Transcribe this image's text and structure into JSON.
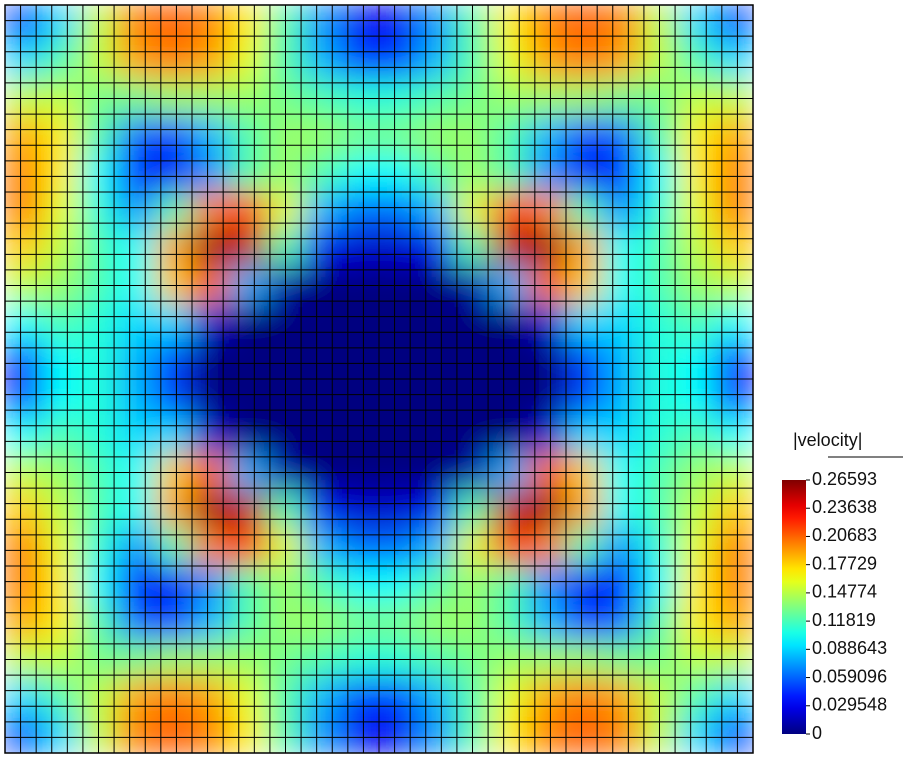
{
  "chart_data": {
    "type": "heatmap",
    "colorbar_title": "|velocity|",
    "colormap": "jet",
    "mesh": true,
    "clim": [
      0,
      0.26593
    ],
    "cticks": [
      0,
      0.029548,
      0.059096,
      0.088643,
      0.11819,
      0.14774,
      0.17729,
      0.20683,
      0.23638,
      0.26593
    ],
    "z": [
      [
        0.05,
        0.09,
        0.15,
        0.2,
        0.21,
        0.2,
        0.17,
        0.12,
        0.07,
        0.03,
        0.03,
        0.07,
        0.12,
        0.17,
        0.2,
        0.21,
        0.2,
        0.15,
        0.09,
        0.05
      ],
      [
        0.09,
        0.12,
        0.15,
        0.19,
        0.2,
        0.19,
        0.16,
        0.12,
        0.08,
        0.05,
        0.05,
        0.08,
        0.12,
        0.16,
        0.19,
        0.2,
        0.19,
        0.15,
        0.12,
        0.09
      ],
      [
        0.15,
        0.15,
        0.13,
        0.13,
        0.14,
        0.14,
        0.14,
        0.13,
        0.12,
        0.11,
        0.11,
        0.12,
        0.13,
        0.14,
        0.14,
        0.14,
        0.13,
        0.13,
        0.15,
        0.15
      ],
      [
        0.19,
        0.17,
        0.12,
        0.06,
        0.05,
        0.08,
        0.12,
        0.14,
        0.14,
        0.13,
        0.13,
        0.14,
        0.14,
        0.12,
        0.08,
        0.05,
        0.06,
        0.12,
        0.17,
        0.19
      ],
      [
        0.2,
        0.17,
        0.1,
        0.04,
        0.03,
        0.07,
        0.12,
        0.14,
        0.12,
        0.1,
        0.1,
        0.12,
        0.14,
        0.12,
        0.07,
        0.03,
        0.04,
        0.1,
        0.17,
        0.2
      ],
      [
        0.2,
        0.16,
        0.11,
        0.07,
        0.12,
        0.2,
        0.22,
        0.16,
        0.08,
        0.06,
        0.06,
        0.08,
        0.16,
        0.22,
        0.2,
        0.12,
        0.07,
        0.11,
        0.16,
        0.2
      ],
      [
        0.18,
        0.15,
        0.12,
        0.1,
        0.19,
        0.26,
        0.25,
        0.12,
        0.03,
        0.02,
        0.02,
        0.03,
        0.12,
        0.25,
        0.26,
        0.19,
        0.1,
        0.12,
        0.15,
        0.18
      ],
      [
        0.15,
        0.14,
        0.12,
        0.1,
        0.18,
        0.21,
        0.08,
        0.01,
        0,
        0,
        0,
        0,
        0.01,
        0.08,
        0.21,
        0.18,
        0.1,
        0.12,
        0.14,
        0.15
      ],
      [
        0.1,
        0.12,
        0.11,
        0.09,
        0.09,
        0.02,
        0,
        0,
        0,
        0,
        0,
        0,
        0,
        0,
        0.02,
        0.09,
        0.09,
        0.11,
        0.12,
        0.1
      ],
      [
        0.04,
        0.1,
        0.11,
        0.08,
        0.05,
        0,
        0,
        0,
        0,
        0,
        0,
        0,
        0,
        0,
        0,
        0.05,
        0.08,
        0.11,
        0.1,
        0.04
      ],
      [
        0.04,
        0.1,
        0.11,
        0.08,
        0.05,
        0,
        0,
        0,
        0,
        0,
        0,
        0,
        0,
        0,
        0,
        0.05,
        0.08,
        0.11,
        0.1,
        0.04
      ],
      [
        0.1,
        0.12,
        0.11,
        0.09,
        0.09,
        0.02,
        0,
        0,
        0,
        0,
        0,
        0,
        0,
        0,
        0.02,
        0.09,
        0.09,
        0.11,
        0.12,
        0.1
      ],
      [
        0.15,
        0.14,
        0.12,
        0.1,
        0.18,
        0.21,
        0.08,
        0.01,
        0,
        0,
        0,
        0,
        0.01,
        0.08,
        0.21,
        0.18,
        0.1,
        0.12,
        0.14,
        0.15
      ],
      [
        0.18,
        0.15,
        0.12,
        0.1,
        0.19,
        0.26,
        0.25,
        0.12,
        0.03,
        0.02,
        0.02,
        0.03,
        0.12,
        0.25,
        0.26,
        0.19,
        0.1,
        0.12,
        0.15,
        0.18
      ],
      [
        0.2,
        0.16,
        0.11,
        0.07,
        0.12,
        0.2,
        0.22,
        0.16,
        0.08,
        0.06,
        0.06,
        0.08,
        0.16,
        0.22,
        0.2,
        0.12,
        0.07,
        0.11,
        0.16,
        0.2
      ],
      [
        0.2,
        0.17,
        0.1,
        0.04,
        0.03,
        0.07,
        0.12,
        0.14,
        0.12,
        0.1,
        0.1,
        0.12,
        0.14,
        0.12,
        0.07,
        0.03,
        0.04,
        0.1,
        0.17,
        0.2
      ],
      [
        0.19,
        0.17,
        0.12,
        0.06,
        0.05,
        0.08,
        0.12,
        0.14,
        0.14,
        0.13,
        0.13,
        0.14,
        0.14,
        0.12,
        0.08,
        0.05,
        0.06,
        0.12,
        0.17,
        0.19
      ],
      [
        0.15,
        0.15,
        0.13,
        0.13,
        0.14,
        0.14,
        0.14,
        0.13,
        0.12,
        0.11,
        0.11,
        0.12,
        0.13,
        0.14,
        0.14,
        0.14,
        0.13,
        0.13,
        0.15,
        0.15
      ],
      [
        0.09,
        0.12,
        0.15,
        0.19,
        0.2,
        0.19,
        0.16,
        0.12,
        0.08,
        0.05,
        0.05,
        0.08,
        0.12,
        0.16,
        0.19,
        0.2,
        0.19,
        0.15,
        0.12,
        0.09
      ],
      [
        0.05,
        0.09,
        0.15,
        0.2,
        0.21,
        0.2,
        0.17,
        0.12,
        0.07,
        0.03,
        0.03,
        0.07,
        0.12,
        0.17,
        0.2,
        0.21,
        0.2,
        0.15,
        0.09,
        0.05
      ]
    ]
  }
}
